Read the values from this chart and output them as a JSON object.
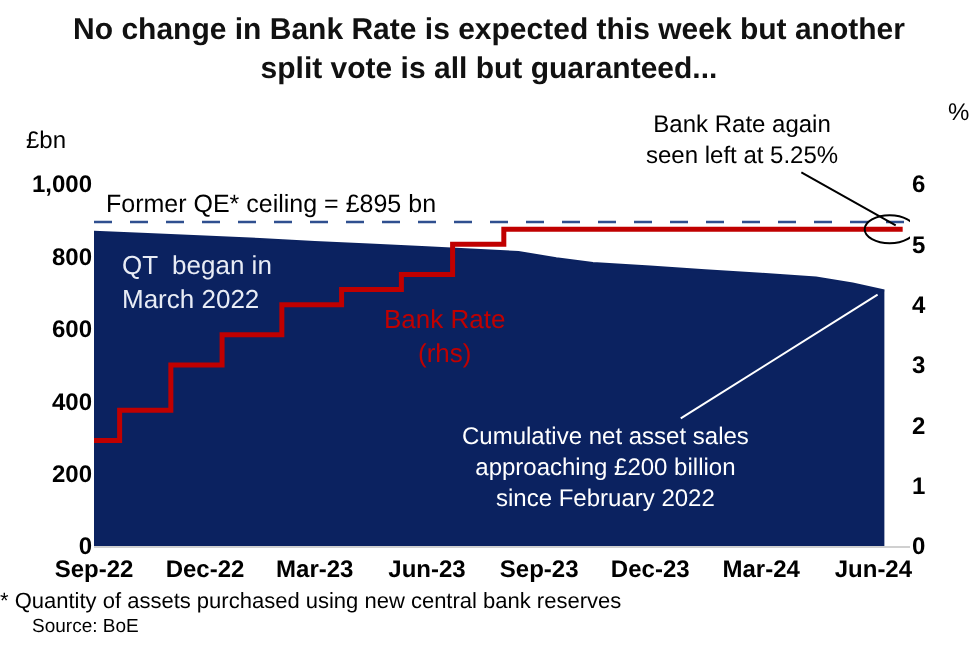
{
  "chart_data": {
    "type": "area",
    "title": "No change in Bank Rate is expected this week but another split vote is all but guaranteed...",
    "ylabel": "£bn",
    "y2label": "%",
    "x": [
      "2022-09-01",
      "2022-10-15",
      "2022-12-01",
      "2023-01-15",
      "2023-03-01",
      "2023-04-15",
      "2023-06-01",
      "2023-07-15",
      "2023-08-15",
      "2023-09-15",
      "2023-10-15",
      "2023-12-01",
      "2024-01-15",
      "2024-03-01",
      "2024-04-15",
      "2024-05-15",
      "2024-06-10"
    ],
    "series": [
      {
        "color": "#0b2260",
        "values": [
          868,
          862,
          855,
          848,
          840,
          833,
          825,
          818,
          812,
          795,
          782,
          772,
          762,
          752,
          742,
          725,
          706
        ]
      },
      {
        "type": "step",
        "name": "Bank Rate (rhs)",
        "axis": "y2",
        "color": "#c00000",
        "x": [
          "2022-09-01",
          "2022-09-22",
          "2022-11-03",
          "2022-12-15",
          "2023-02-02",
          "2023-03-23",
          "2023-05-11",
          "2023-06-22",
          "2023-08-03",
          "2024-06-25"
        ],
        "values": [
          1.75,
          2.25,
          3,
          3.5,
          4,
          4.25,
          4.5,
          5,
          5.25,
          5.25
        ]
      }
    ],
    "xlim": [
      "2022-09-01",
      "2024-07-01"
    ],
    "xticks": [
      {
        "value": "2022-09-01",
        "label": "Sep-22"
      },
      {
        "value": "2022-12-01",
        "label": "Dec-22"
      },
      {
        "value": "2023-03-01",
        "label": "Mar-23"
      },
      {
        "value": "2023-06-01",
        "label": "Jun-23"
      },
      {
        "value": "2023-09-01",
        "label": "Sep-23"
      },
      {
        "value": "2023-12-01",
        "label": "Dec-23"
      },
      {
        "value": "2024-03-01",
        "label": "Mar-24"
      },
      {
        "value": "2024-06-01",
        "label": "Jun-24"
      }
    ],
    "ylim": [
      0,
      1000
    ],
    "yticks": [
      0,
      200,
      400,
      600,
      800,
      {
        "value": 1000,
        "label": "1,000"
      }
    ],
    "y2lim": [
      0,
      6
    ],
    "y2ticks": [
      0,
      1,
      2,
      3,
      4,
      5,
      6
    ],
    "ref_lines": [
      {
        "axis": "y",
        "value": 895,
        "label": "Former QE* ceiling = £895 bn",
        "color": "#2f4f8f",
        "line_style": "dashed"
      }
    ],
    "annotations": [
      "QT  began in March 2022",
      {
        "text": "Bank Rate again seen left at 5.25%",
        "x": "2024-06-25",
        "y": 875
      },
      {
        "text": "Cumulative net asset sales approaching £200 billion since February 2022",
        "x": "2024-06-10",
        "y": 706
      },
      "* Quantity of assets purchased using new central bank reserves",
      "Source: BoE"
    ],
    "grid": false,
    "legend": false
  }
}
